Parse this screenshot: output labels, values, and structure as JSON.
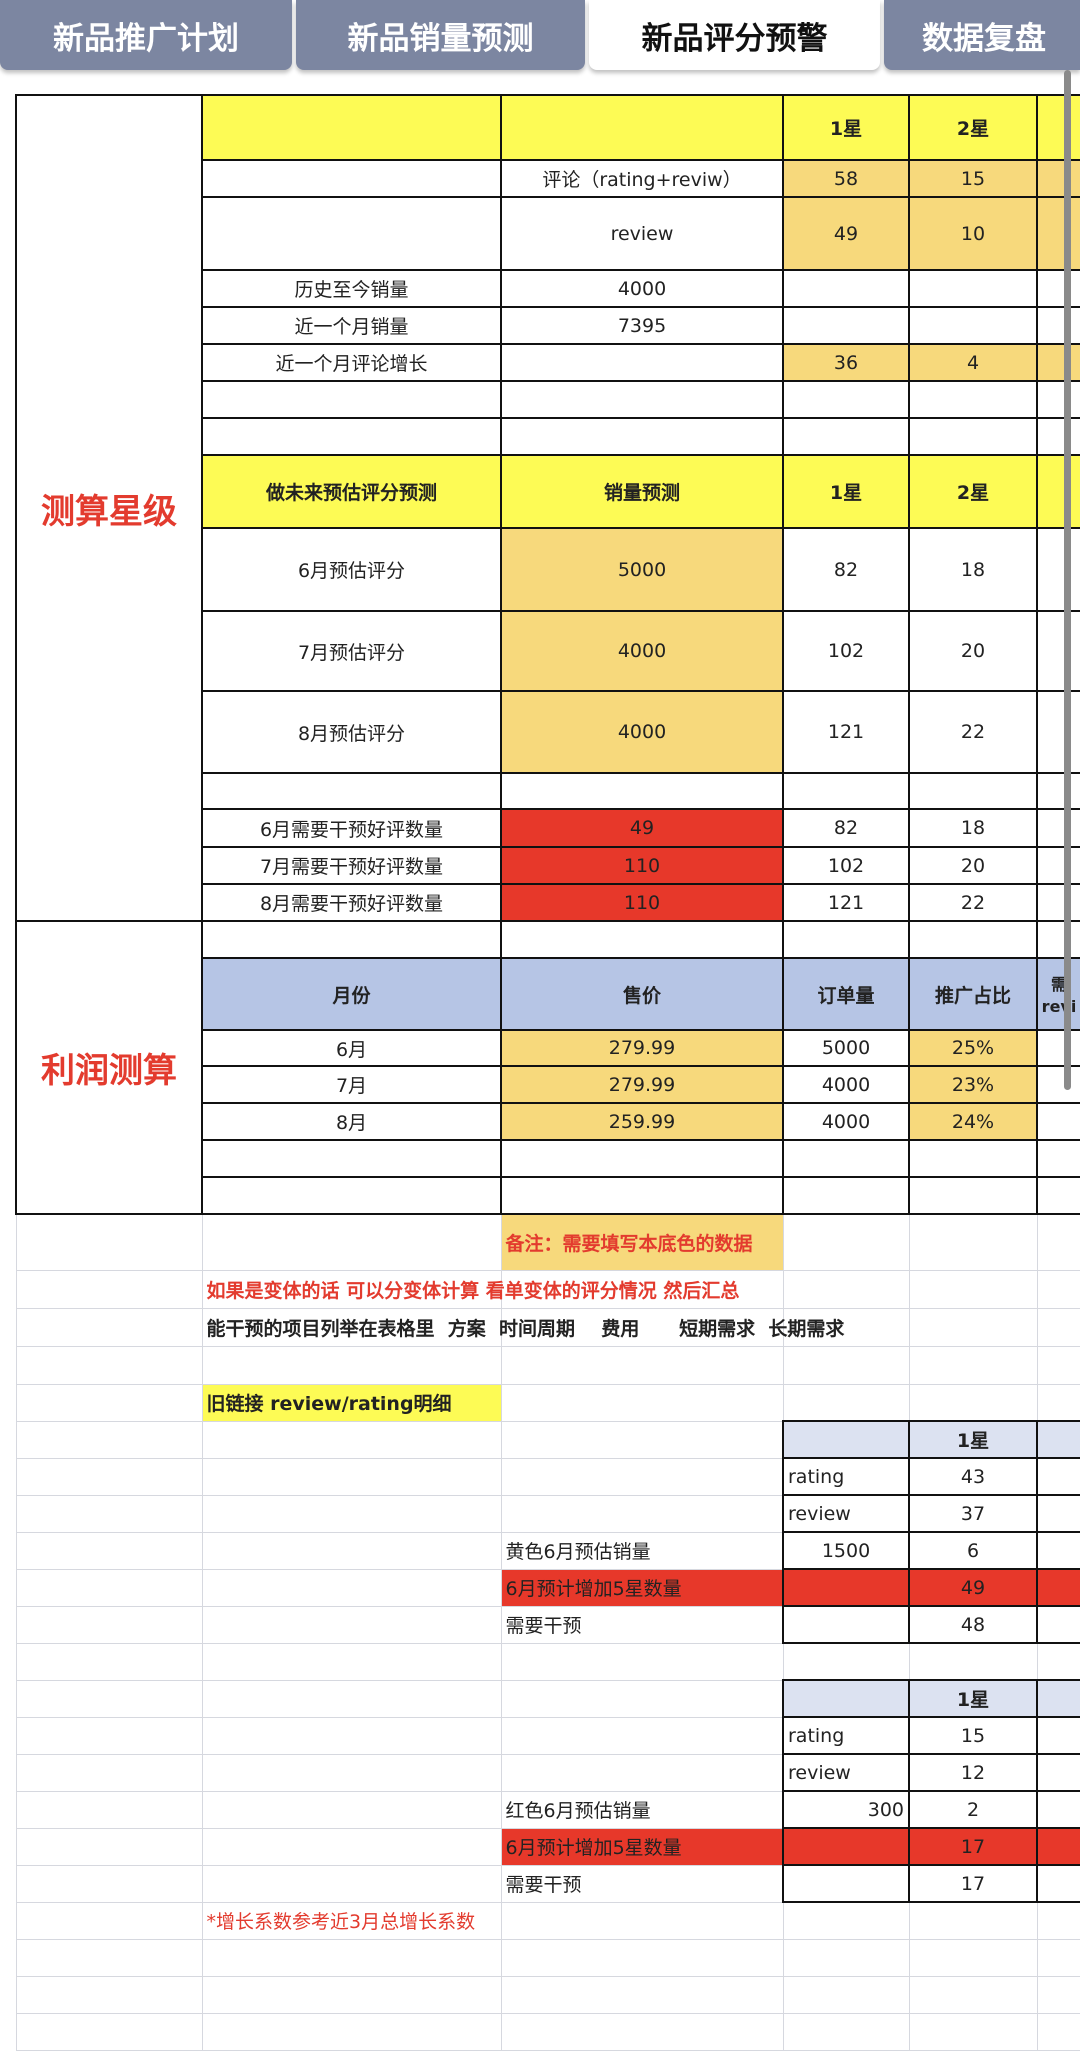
{
  "tabs": [
    {
      "label": "新品推广计划",
      "active": false
    },
    {
      "label": "新品销量预测",
      "active": false
    },
    {
      "label": "新品评分预警",
      "active": true
    },
    {
      "label": "数据复盘",
      "active": false
    }
  ],
  "colors": {
    "yellow": "#fdfb55",
    "orange": "#f7d97c",
    "red": "#e7382a",
    "blue": "#b6c5e5",
    "lightblue": "#dce2f1",
    "redtext": "#e33b2e",
    "tab": "#7c86a1"
  },
  "sections": [
    {
      "label": "测算星级"
    },
    {
      "label": "利润测算"
    }
  ],
  "rows": [
    [
      {
        "bg": "yellow"
      },
      {
        "bg": "yellow"
      },
      {
        "bg": "yellow"
      },
      {
        "t": "1星",
        "bg": "yellow",
        "b": 1
      },
      {
        "t": "2星",
        "bg": "yellow",
        "b": 1
      },
      {
        "bg": "yellow"
      }
    ],
    [
      {},
      {},
      {
        "t": "评论（rating+reviw）"
      },
      {
        "t": "58",
        "bg": "orange"
      },
      {
        "t": "15",
        "bg": "orange"
      },
      {
        "bg": "orange"
      }
    ],
    [
      {},
      {},
      {
        "t": "review"
      },
      {
        "t": "49",
        "bg": "orange"
      },
      {
        "t": "10",
        "bg": "orange"
      },
      {
        "bg": "orange"
      }
    ],
    [
      {},
      {
        "t": "历史至今销量"
      },
      {
        "t": "4000"
      },
      {},
      {},
      {}
    ],
    [
      {},
      {
        "t": "近一个月销量"
      },
      {
        "t": "7395"
      },
      {},
      {},
      {}
    ],
    [
      {},
      {
        "t": "近一个月评论增长"
      },
      {},
      {
        "t": "36",
        "bg": "orange"
      },
      {
        "t": "4",
        "bg": "orange"
      },
      {
        "bg": "orange"
      }
    ],
    [
      {},
      {},
      {},
      {},
      {},
      {}
    ],
    [
      {},
      {},
      {},
      {},
      {},
      {}
    ],
    [
      {},
      {
        "t": "做未来预估评分预测",
        "bg": "yellow",
        "b": 1
      },
      {
        "t": "销量预测",
        "bg": "yellow",
        "b": 1
      },
      {
        "t": "1星",
        "bg": "yellow",
        "b": 1
      },
      {
        "t": "2星",
        "bg": "yellow",
        "b": 1
      },
      {
        "bg": "yellow"
      }
    ],
    [
      {},
      {
        "t": "6月预估评分"
      },
      {
        "t": "5000",
        "bg": "orange"
      },
      {
        "t": "82"
      },
      {
        "t": "18"
      },
      {}
    ],
    [
      {},
      {
        "t": "7月预估评分"
      },
      {
        "t": "4000",
        "bg": "orange"
      },
      {
        "t": "102"
      },
      {
        "t": "20"
      },
      {}
    ],
    [
      {},
      {
        "t": "8月预估评分"
      },
      {
        "t": "4000",
        "bg": "orange"
      },
      {
        "t": "121"
      },
      {
        "t": "22"
      },
      {}
    ],
    [
      {},
      {},
      {},
      {},
      {},
      {}
    ],
    [
      {},
      {
        "t": "6月需要干预好评数量"
      },
      {
        "t": "49",
        "bg": "red"
      },
      {
        "t": "82"
      },
      {
        "t": "18"
      },
      {}
    ],
    [
      {},
      {
        "t": "7月需要干预好评数量"
      },
      {
        "t": "110",
        "bg": "red"
      },
      {
        "t": "102"
      },
      {
        "t": "20"
      },
      {}
    ],
    [
      {},
      {
        "t": "8月需要干预好评数量"
      },
      {
        "t": "110",
        "bg": "red"
      },
      {
        "t": "121"
      },
      {
        "t": "22"
      },
      {}
    ],
    [
      {},
      {},
      {},
      {},
      {},
      {}
    ],
    [
      {},
      {
        "t": "月份",
        "bg": "blue",
        "b": 1
      },
      {
        "t": "售价",
        "bg": "blue",
        "b": 1
      },
      {
        "t": "订单量",
        "bg": "blue",
        "b": 1
      },
      {
        "t": "推广占比",
        "bg": "blue",
        "b": 1
      },
      {
        "t": "需\nrevi",
        "bg": "blue",
        "b": 1
      }
    ],
    [
      {},
      {
        "t": "6月"
      },
      {
        "t": "279.99",
        "bg": "orange"
      },
      {
        "t": "5000"
      },
      {
        "t": "25%",
        "bg": "orange"
      },
      {}
    ],
    [
      {},
      {
        "t": "7月"
      },
      {
        "t": "279.99",
        "bg": "orange"
      },
      {
        "t": "4000"
      },
      {
        "t": "23%",
        "bg": "orange"
      },
      {}
    ],
    [
      {},
      {
        "t": "8月"
      },
      {
        "t": "259.99",
        "bg": "orange"
      },
      {
        "t": "4000"
      },
      {
        "t": "24%",
        "bg": "orange"
      },
      {}
    ],
    [
      {},
      {},
      {},
      {},
      {},
      {}
    ],
    [
      {},
      {},
      {},
      {},
      {},
      {}
    ],
    [
      {},
      {},
      {
        "t": "备注：需要填写本底色的数据",
        "bg": "orange",
        "c": "redtext",
        "b": 1,
        "al": "left"
      },
      {},
      {},
      {}
    ],
    [
      {},
      {
        "t": "如果是变体的话 可以分变体计算 看单变体的评分情况 然后汇总",
        "c": "redtext",
        "b": 1,
        "al": "left"
      },
      {},
      {},
      {},
      {}
    ],
    [
      {},
      {
        "t": "能干预的项目列举在表格里  方案  时间周期    费用      短期需求  长期需求",
        "b": 1,
        "al": "left"
      },
      {},
      {},
      {},
      {}
    ],
    [
      {},
      {},
      {},
      {},
      {},
      {}
    ],
    [
      {},
      {
        "t": "旧链接 review/rating明细",
        "bg": "yellow",
        "b": 1,
        "al": "left"
      },
      {},
      {},
      {},
      {}
    ],
    [
      {},
      {},
      {},
      {
        "bg": "lightblue"
      },
      {
        "t": "1星",
        "bg": "lightblue",
        "b": 1
      },
      {
        "bg": "lightblue"
      }
    ],
    [
      {},
      {},
      {},
      {
        "t": "rating",
        "al": "left"
      },
      {
        "t": "43"
      },
      {}
    ],
    [
      {},
      {},
      {},
      {
        "t": "review",
        "al": "left"
      },
      {
        "t": "37"
      },
      {}
    ],
    [
      {},
      {},
      {
        "t": "黄色6月预估销量",
        "al": "left"
      },
      {
        "t": "1500"
      },
      {
        "t": "6"
      },
      {}
    ],
    [
      {},
      {},
      {
        "t": "6月预计增加5星数量",
        "bg": "red",
        "al": "left"
      },
      {
        "bg": "red"
      },
      {
        "t": "49",
        "bg": "red"
      },
      {
        "bg": "red"
      }
    ],
    [
      {},
      {},
      {
        "t": "需要干预",
        "al": "left"
      },
      {},
      {
        "t": "48"
      },
      {}
    ],
    [
      {},
      {},
      {},
      {},
      {},
      {}
    ],
    [
      {},
      {},
      {},
      {
        "bg": "lightblue"
      },
      {
        "t": "1星",
        "bg": "lightblue",
        "b": 1
      },
      {
        "bg": "lightblue"
      }
    ],
    [
      {},
      {},
      {},
      {
        "t": "rating",
        "al": "left"
      },
      {
        "t": "15"
      },
      {}
    ],
    [
      {},
      {},
      {},
      {
        "t": "review",
        "al": "left"
      },
      {
        "t": "12"
      },
      {}
    ],
    [
      {},
      {},
      {
        "t": "红色6月预估销量",
        "al": "left"
      },
      {
        "t": "300",
        "al": "right"
      },
      {
        "t": "2"
      },
      {}
    ],
    [
      {},
      {},
      {
        "t": "6月预计增加5星数量",
        "bg": "red",
        "al": "left"
      },
      {
        "bg": "red"
      },
      {
        "t": "17",
        "bg": "red"
      },
      {
        "bg": "red"
      }
    ],
    [
      {},
      {},
      {
        "t": "需要干预",
        "al": "left"
      },
      {},
      {
        "t": "17"
      },
      {}
    ],
    [
      {},
      {
        "t": "*增长系数参考近3月总增长系数",
        "c": "redtext",
        "al": "left"
      },
      {},
      {},
      {},
      {}
    ],
    [
      {},
      {},
      {},
      {},
      {},
      {}
    ],
    [
      {},
      {},
      {},
      {},
      {},
      {}
    ],
    [
      {},
      {},
      {},
      {},
      {},
      {}
    ]
  ]
}
